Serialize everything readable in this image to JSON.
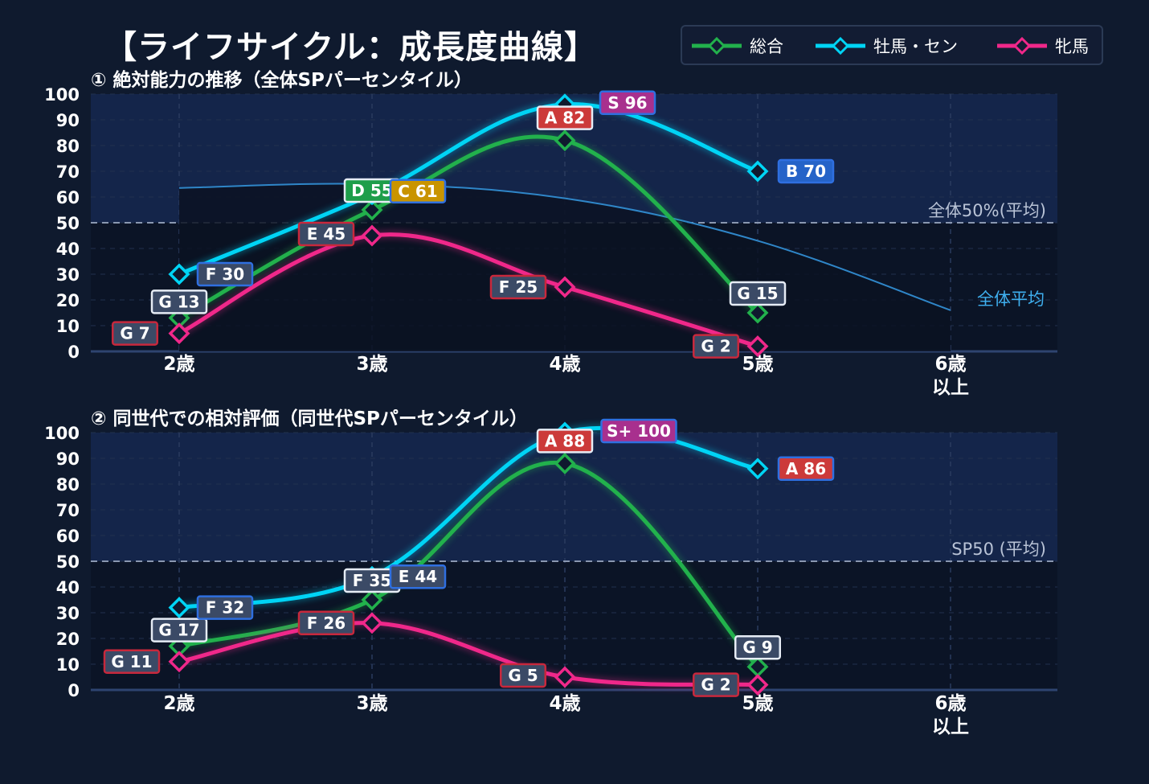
{
  "title": "【ライフサイクル：成長度曲線】",
  "legend": [
    {
      "name": "総合",
      "color": "#22b14c",
      "icon": "diamond-line-icon"
    },
    {
      "name": "牡馬・セン",
      "color": "#00d4f5",
      "icon": "diamond-line-icon"
    },
    {
      "name": "牝馬",
      "color": "#f0288a",
      "icon": "diamond-line-icon"
    }
  ],
  "chart_data": [
    {
      "type": "line",
      "title": "① 絶対能力の推移（全体SPパーセンタイル）",
      "categories": [
        "2歳",
        "3歳",
        "4歳",
        "5歳",
        "6歳\n以上"
      ],
      "ylim": [
        0,
        100
      ],
      "yticks": [
        0,
        10,
        20,
        30,
        40,
        50,
        60,
        70,
        80,
        90,
        100
      ],
      "grid": true,
      "reference_line": {
        "value": 50,
        "label": "全体50%(平均)"
      },
      "average_curve": {
        "label": "全体平均",
        "x": [
          0,
          1,
          2,
          3,
          4
        ],
        "values": [
          63.5,
          65,
          59.5,
          43,
          16
        ]
      },
      "series": [
        {
          "name": "総合",
          "color": "#22b14c",
          "x": [
            0,
            1,
            2,
            3
          ],
          "values": [
            13,
            55,
            82,
            15
          ],
          "labels": [
            "G 13",
            "D 55",
            "A 82",
            "G 15"
          ]
        },
        {
          "name": "牡馬・セン",
          "color": "#00d4f5",
          "x": [
            0,
            1,
            2,
            3
          ],
          "values": [
            30,
            61,
            96,
            70
          ],
          "labels": [
            "F 30",
            "C 61",
            "S 96",
            "B 70"
          ]
        },
        {
          "name": "牝馬",
          "color": "#f0288a",
          "x": [
            0,
            1,
            2,
            3
          ],
          "values": [
            7,
            45,
            25,
            2
          ],
          "labels": [
            "G 7",
            "E 45",
            "F 25",
            "G 2"
          ]
        }
      ]
    },
    {
      "type": "line",
      "title": "② 同世代での相対評価（同世代SPパーセンタイル）",
      "categories": [
        "2歳",
        "3歳",
        "4歳",
        "5歳",
        "6歳\n以上"
      ],
      "ylim": [
        0,
        100
      ],
      "yticks": [
        0,
        10,
        20,
        30,
        40,
        50,
        60,
        70,
        80,
        90,
        100
      ],
      "grid": true,
      "reference_line": {
        "value": 50,
        "label": "SP50 (平均)"
      },
      "series": [
        {
          "name": "総合",
          "color": "#22b14c",
          "x": [
            0,
            1,
            2,
            3
          ],
          "values": [
            17,
            35,
            88,
            9
          ],
          "labels": [
            "G 17",
            "F 35",
            "A 88",
            "G 9"
          ]
        },
        {
          "name": "牡馬・セン",
          "color": "#00d4f5",
          "x": [
            0,
            1,
            2,
            3
          ],
          "values": [
            32,
            44,
            100,
            86
          ],
          "labels": [
            "F 32",
            "E 44",
            "S+ 100",
            "A 86"
          ]
        },
        {
          "name": "牝馬",
          "color": "#f0288a",
          "x": [
            0,
            1,
            2,
            3
          ],
          "values": [
            11,
            26,
            5,
            2
          ],
          "labels": [
            "G 11",
            "F 26",
            "G 5",
            "G 2"
          ]
        }
      ]
    }
  ]
}
